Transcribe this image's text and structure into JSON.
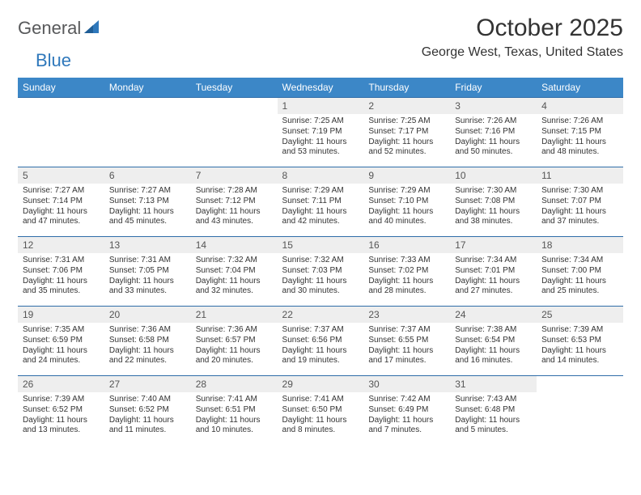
{
  "logo": {
    "text1": "General",
    "text2": "Blue"
  },
  "title": "October 2025",
  "location": "George West, Texas, United States",
  "day_headers": [
    "Sunday",
    "Monday",
    "Tuesday",
    "Wednesday",
    "Thursday",
    "Friday",
    "Saturday"
  ],
  "colors": {
    "header_bg": "#3c87c7",
    "header_text": "#ffffff",
    "daynum_bg": "#eeeeee",
    "rule": "#2f6da8",
    "logo_gray": "#58595b",
    "logo_blue": "#2f78bb"
  },
  "weeks": [
    [
      {
        "n": "",
        "sunrise": "",
        "sunset": "",
        "daylight": ""
      },
      {
        "n": "",
        "sunrise": "",
        "sunset": "",
        "daylight": ""
      },
      {
        "n": "",
        "sunrise": "",
        "sunset": "",
        "daylight": ""
      },
      {
        "n": "1",
        "sunrise": "Sunrise: 7:25 AM",
        "sunset": "Sunset: 7:19 PM",
        "daylight": "Daylight: 11 hours and 53 minutes."
      },
      {
        "n": "2",
        "sunrise": "Sunrise: 7:25 AM",
        "sunset": "Sunset: 7:17 PM",
        "daylight": "Daylight: 11 hours and 52 minutes."
      },
      {
        "n": "3",
        "sunrise": "Sunrise: 7:26 AM",
        "sunset": "Sunset: 7:16 PM",
        "daylight": "Daylight: 11 hours and 50 minutes."
      },
      {
        "n": "4",
        "sunrise": "Sunrise: 7:26 AM",
        "sunset": "Sunset: 7:15 PM",
        "daylight": "Daylight: 11 hours and 48 minutes."
      }
    ],
    [
      {
        "n": "5",
        "sunrise": "Sunrise: 7:27 AM",
        "sunset": "Sunset: 7:14 PM",
        "daylight": "Daylight: 11 hours and 47 minutes."
      },
      {
        "n": "6",
        "sunrise": "Sunrise: 7:27 AM",
        "sunset": "Sunset: 7:13 PM",
        "daylight": "Daylight: 11 hours and 45 minutes."
      },
      {
        "n": "7",
        "sunrise": "Sunrise: 7:28 AM",
        "sunset": "Sunset: 7:12 PM",
        "daylight": "Daylight: 11 hours and 43 minutes."
      },
      {
        "n": "8",
        "sunrise": "Sunrise: 7:29 AM",
        "sunset": "Sunset: 7:11 PM",
        "daylight": "Daylight: 11 hours and 42 minutes."
      },
      {
        "n": "9",
        "sunrise": "Sunrise: 7:29 AM",
        "sunset": "Sunset: 7:10 PM",
        "daylight": "Daylight: 11 hours and 40 minutes."
      },
      {
        "n": "10",
        "sunrise": "Sunrise: 7:30 AM",
        "sunset": "Sunset: 7:08 PM",
        "daylight": "Daylight: 11 hours and 38 minutes."
      },
      {
        "n": "11",
        "sunrise": "Sunrise: 7:30 AM",
        "sunset": "Sunset: 7:07 PM",
        "daylight": "Daylight: 11 hours and 37 minutes."
      }
    ],
    [
      {
        "n": "12",
        "sunrise": "Sunrise: 7:31 AM",
        "sunset": "Sunset: 7:06 PM",
        "daylight": "Daylight: 11 hours and 35 minutes."
      },
      {
        "n": "13",
        "sunrise": "Sunrise: 7:31 AM",
        "sunset": "Sunset: 7:05 PM",
        "daylight": "Daylight: 11 hours and 33 minutes."
      },
      {
        "n": "14",
        "sunrise": "Sunrise: 7:32 AM",
        "sunset": "Sunset: 7:04 PM",
        "daylight": "Daylight: 11 hours and 32 minutes."
      },
      {
        "n": "15",
        "sunrise": "Sunrise: 7:32 AM",
        "sunset": "Sunset: 7:03 PM",
        "daylight": "Daylight: 11 hours and 30 minutes."
      },
      {
        "n": "16",
        "sunrise": "Sunrise: 7:33 AM",
        "sunset": "Sunset: 7:02 PM",
        "daylight": "Daylight: 11 hours and 28 minutes."
      },
      {
        "n": "17",
        "sunrise": "Sunrise: 7:34 AM",
        "sunset": "Sunset: 7:01 PM",
        "daylight": "Daylight: 11 hours and 27 minutes."
      },
      {
        "n": "18",
        "sunrise": "Sunrise: 7:34 AM",
        "sunset": "Sunset: 7:00 PM",
        "daylight": "Daylight: 11 hours and 25 minutes."
      }
    ],
    [
      {
        "n": "19",
        "sunrise": "Sunrise: 7:35 AM",
        "sunset": "Sunset: 6:59 PM",
        "daylight": "Daylight: 11 hours and 24 minutes."
      },
      {
        "n": "20",
        "sunrise": "Sunrise: 7:36 AM",
        "sunset": "Sunset: 6:58 PM",
        "daylight": "Daylight: 11 hours and 22 minutes."
      },
      {
        "n": "21",
        "sunrise": "Sunrise: 7:36 AM",
        "sunset": "Sunset: 6:57 PM",
        "daylight": "Daylight: 11 hours and 20 minutes."
      },
      {
        "n": "22",
        "sunrise": "Sunrise: 7:37 AM",
        "sunset": "Sunset: 6:56 PM",
        "daylight": "Daylight: 11 hours and 19 minutes."
      },
      {
        "n": "23",
        "sunrise": "Sunrise: 7:37 AM",
        "sunset": "Sunset: 6:55 PM",
        "daylight": "Daylight: 11 hours and 17 minutes."
      },
      {
        "n": "24",
        "sunrise": "Sunrise: 7:38 AM",
        "sunset": "Sunset: 6:54 PM",
        "daylight": "Daylight: 11 hours and 16 minutes."
      },
      {
        "n": "25",
        "sunrise": "Sunrise: 7:39 AM",
        "sunset": "Sunset: 6:53 PM",
        "daylight": "Daylight: 11 hours and 14 minutes."
      }
    ],
    [
      {
        "n": "26",
        "sunrise": "Sunrise: 7:39 AM",
        "sunset": "Sunset: 6:52 PM",
        "daylight": "Daylight: 11 hours and 13 minutes."
      },
      {
        "n": "27",
        "sunrise": "Sunrise: 7:40 AM",
        "sunset": "Sunset: 6:52 PM",
        "daylight": "Daylight: 11 hours and 11 minutes."
      },
      {
        "n": "28",
        "sunrise": "Sunrise: 7:41 AM",
        "sunset": "Sunset: 6:51 PM",
        "daylight": "Daylight: 11 hours and 10 minutes."
      },
      {
        "n": "29",
        "sunrise": "Sunrise: 7:41 AM",
        "sunset": "Sunset: 6:50 PM",
        "daylight": "Daylight: 11 hours and 8 minutes."
      },
      {
        "n": "30",
        "sunrise": "Sunrise: 7:42 AM",
        "sunset": "Sunset: 6:49 PM",
        "daylight": "Daylight: 11 hours and 7 minutes."
      },
      {
        "n": "31",
        "sunrise": "Sunrise: 7:43 AM",
        "sunset": "Sunset: 6:48 PM",
        "daylight": "Daylight: 11 hours and 5 minutes."
      },
      {
        "n": "",
        "sunrise": "",
        "sunset": "",
        "daylight": ""
      }
    ]
  ]
}
